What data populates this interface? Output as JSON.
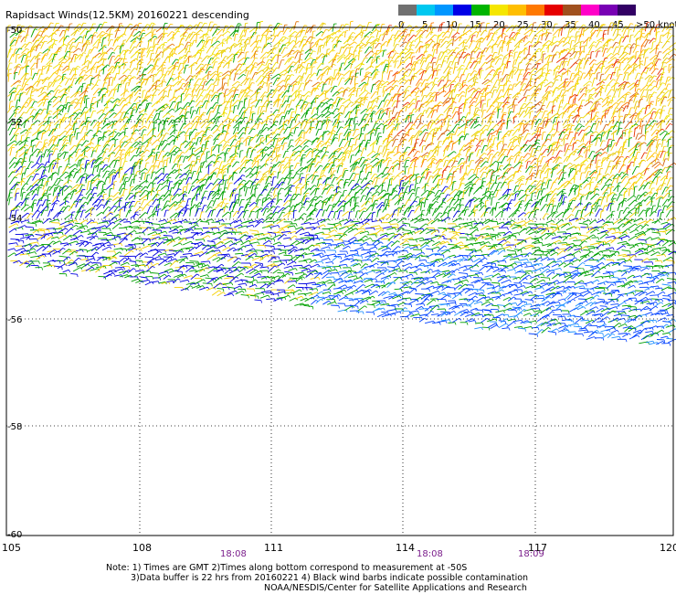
{
  "title": "Rapidsact Winds(12.5KM) 20160221 descending",
  "legend": {
    "labels": [
      "0",
      "5",
      "10",
      "15",
      "20",
      "25",
      "30",
      "35",
      "40",
      "45",
      ">50 knots"
    ],
    "colors": [
      "#707070",
      "#00c8f0",
      "#0096ff",
      "#0000e6",
      "#00b400",
      "#f5e600",
      "#ffbe00",
      "#ff7800",
      "#e60000",
      "#a0501e",
      "#ff00c8",
      "#7800b4",
      "#320064"
    ]
  },
  "lat_labels": [
    "-50",
    "-52",
    "-54",
    "-56",
    "-58",
    "-60"
  ],
  "lon_labels": [
    "105",
    "108",
    "111",
    "114",
    "117",
    "120"
  ],
  "times": [
    "18:08",
    "18:08",
    "18:09"
  ],
  "notes": [
    "Note: 1) Times are GMT 2)Times along bottom correspond to measurement at -50S",
    "3)Data buffer is 22 hrs from 20160221 4) Black wind barbs indicate possible contamination",
    "NOAA/NESDIS/Center for Satellite Applications and Research"
  ]
}
